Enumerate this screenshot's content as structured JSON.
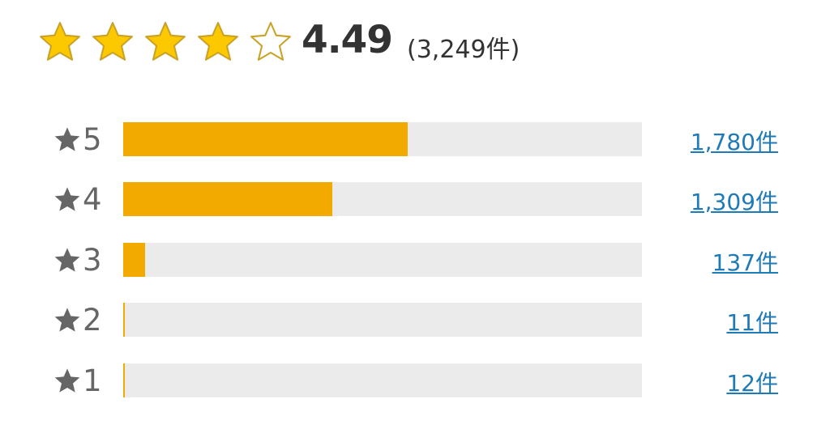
{
  "summary": {
    "star_rating": 4.49,
    "stars_filled": 4,
    "stars_total": 5,
    "average": "4.49",
    "total_label": "(3,249件)",
    "total_count": 3249,
    "colors": {
      "star_fill": "#fcc800",
      "star_stroke": "#c9a227",
      "bar_fill": "#f2a900",
      "bar_track": "#ebebeb",
      "link": "#1f7ab8"
    }
  },
  "rows": [
    {
      "stars": "5",
      "count": 1780,
      "count_label": "1,780件"
    },
    {
      "stars": "4",
      "count": 1309,
      "count_label": "1,309件"
    },
    {
      "stars": "3",
      "count": 137,
      "count_label": "137件"
    },
    {
      "stars": "2",
      "count": 11,
      "count_label": "11件"
    },
    {
      "stars": "1",
      "count": 12,
      "count_label": "12件"
    }
  ]
}
